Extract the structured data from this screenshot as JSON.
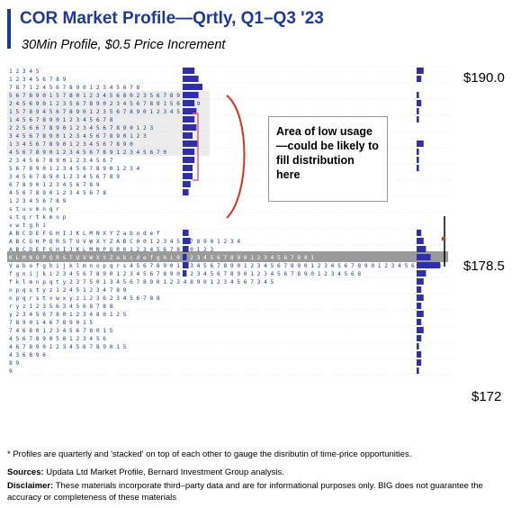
{
  "header": {
    "title": "COR Market Profile—Qrtly, Q1–Q3 '23",
    "subtitle": "30Min Profile, $0.5 Price Increment"
  },
  "chart_data": {
    "type": "bar",
    "title": "COR Market Profile—Qrtly, Q1–Q3 '23",
    "subtitle": "30Min Profile, $0.5 Price Increment",
    "price_labels": [
      "$190.0",
      "$178.5",
      "$172"
    ],
    "price_levels": [
      190.0,
      178.5,
      172
    ],
    "ylim": [
      171,
      191
    ],
    "annotation": "Area of low usage—could be likely to fill distribution here",
    "series": [
      {
        "comment": "stacked TPO profile row text (letters/digits) per price row, top to bottom",
        "rows": [
          "1 2 3 4 5",
          "1 2 3 4 5 6 7 8 9",
          "7 8 7 1 2 4 5 6 7 8 9 0 1 2 3 4 5 6 7 8",
          "5 6 7 8 9 0 1 5 7 8 0 1 2 3 4 5 6 8 0 2 3 5 6 7 8 9",
          "2 4 5 6 9 0 1 2 3 5 6 7 8 9 0 2 3 4 5 6 7 8 9 1 5 6 7 8 9",
          "1 5 7 8 9 4 5 6 7 8 9 0 1 2 3 5 6 7 8 9 0 1 2 3 4 5 6",
          "1 4 5 6 7 8 9 0 1 2 3 4 5 6 7 8",
          "2 2 5 6 6 7 8 9 0 1 2 3 4 5 6 7 8 9 0 1 2 3",
          "3 4 5 6 7 8 9 0 1 2 3 4 5 6 7 8 9 0 1 2 3",
          "1 3 4 5 6 7 8 9 0 1 2 3 4 5 6 7 8 9 0",
          "4 5 6 7 8 9 0 1 2 3 4 5 6 7 8 9 1 2 3 4 5 6 7 0",
          "2 3 4 5 6 7 8 9 0 1 2 3 4 5 6 7",
          "5 6 7 8 9 0 1 2 3 4 5 6 7 8 9 0 1 2 3 4",
          "3 4 5 6 7 8 9 0 1 2 3 4 5 6 7 8 9",
          "6 7 8 9 0 1 2 3 4 5 6 7 8 9",
          "4 5 6 7 8 9 0 1 2 3 4 5 6 7 8",
          "1 2 3 4 5 6 7 8 9",
          "s t u v m n q r",
          "s t q r t k m n p",
          "v w t g h i",
          "A B C D E F G H I J K L M N X Y Z a b o d e f",
          "A B C G H P Q R S T U V W X Y Z A B C 0 0 1 2 3 4 5 6 7 8 9 0 1 2 3 4",
          "A B C D E F G H I J K L M N P Q R 0 1 2 3 4 5 6 7 8 9 0 1 2 3",
          "K L M N O P Q R S T U V W X Y Z a b c d e f g h i 0 1 2 3 4 5 6 7 8 9 0 1 2 3 4 5 6 7 8 0 1",
          "V a b o f g h i j k l m n o p q r s 4 5 6 7 8 9 0 1 2 3 4 5 6 7 8 9 0 1 2 3 4 5 6 7 8 9 0 1 2 3 4 5 6 7 8 9 0 1 2 3 4 5 6 7 8 9 0",
          "f g n i j k i 2 3 4 5 6 7 8 9 0 1 2 3 4 5 6 7 8 9 0 1 2 3 4 5 6 7 8 9 0 1 2 3 4 5 6 7 8 9 0 1 2 3 4 5 6 8",
          "f k l m n p q t y 2 3 7 5 0 1 3 4 5 6 7 8 9 0 1 2 3 4 8 9 0 1 2 3 4 5 6 7 3 4 5",
          "n p q s t y z 1 2 4 5 1 2 3 4 7 8 9",
          "n p q r s t v w x y z 1 2 3 6 2 3 4 5 6 7 8 8",
          "r y z 1 2 3 5 6 3 4 5 6 8 7 8 8",
          "y 2 3 4 5 6 7 8 0 1 2 3 4 8 0 1 2 5",
          "7 8 9 0 1 4 6 7 8 9 0 1 5",
          "7 4 6 8 0 1 2 3 4 5 6 7 8 0 1 5",
          "4 5 6 7 8 9 0 5 0 1 2 3 4 5 6",
          "4 6 7 8 9 0 1 2 3 4 5 6 7 8 9 0 1 5",
          "4 3 6 8 9 6",
          "8 9",
          "9"
        ],
        "point_of_control_row": 24,
        "q1_hist_col1": [
          6,
          8,
          10,
          8,
          6,
          7,
          6,
          7,
          5,
          8,
          6,
          6,
          5,
          5,
          4,
          3,
          0,
          0,
          0,
          0,
          3,
          4,
          3,
          2,
          3,
          2
        ],
        "right_hist": [
          3,
          2,
          0,
          1,
          2,
          1,
          1,
          0,
          0,
          3,
          1,
          1,
          1,
          0,
          0,
          0,
          0,
          0,
          0,
          0,
          2,
          3,
          4,
          6,
          10,
          4,
          3,
          2,
          3,
          2,
          3,
          2,
          3,
          2,
          1,
          2,
          2,
          1
        ]
      }
    ],
    "grid": true
  },
  "annotation": {
    "text": "Area of low usage—could be likely to fill distribution here"
  },
  "footer": {
    "footnote": "* Profiles are quarterly and 'stacked' on top of each other to gauge the disributin of time-price opportunities.",
    "sources_label": "Sources:",
    "sources_text": " Updata Ltd Market Profile, Bernard Investment Group analysis.",
    "disclaimer_label": "Disclaimer:",
    "disclaimer_text": " These materials incorporate third–party data and are for informational purposes only. BIG does not guarantee the accuracy or completeness of these materials"
  },
  "colors": {
    "title": "#1f3a93",
    "profile_text": "#1f3a93",
    "histogram": "#2f2fa8",
    "poc_band": "#9a9a9a",
    "va_band": "#c8c8c8",
    "bracket": "#d9301f"
  }
}
